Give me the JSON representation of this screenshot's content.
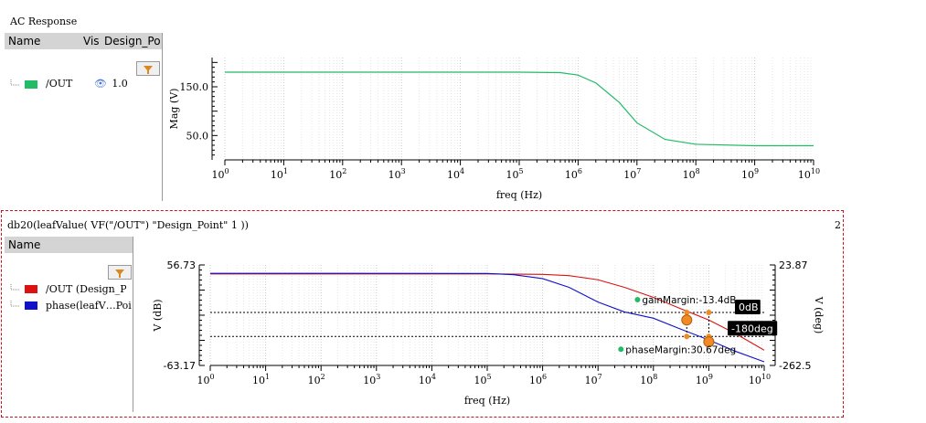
{
  "top_panel": {
    "title": "AC Response",
    "columns": [
      "Name",
      "Vis",
      "Design_Po"
    ],
    "legend": [
      {
        "name": "/OUT",
        "color": "#22bb66",
        "vis_icon": "eye-icon",
        "design_point": "1.0"
      }
    ]
  },
  "bottom_panel": {
    "title": "db20(leafValue( VF(\"/OUT\") \"Design_Point\" 1 ))",
    "panel_number": "2",
    "columns": [
      "Name"
    ],
    "legend": [
      {
        "name": "/OUT (Design_Po",
        "color": "#dd1111"
      },
      {
        "name": "phase(leafV…Poi",
        "color": "#1111cc"
      }
    ]
  },
  "chart_data": [
    {
      "type": "line",
      "xscale": "log",
      "xlim": [
        1,
        10000000000
      ],
      "ylim": [
        0,
        210
      ],
      "xlabel": "freq (Hz)",
      "ylabel": "Mag (V)",
      "xticks": [
        {
          "base": "10",
          "exp": "0"
        },
        {
          "base": "10",
          "exp": "1"
        },
        {
          "base": "10",
          "exp": "2"
        },
        {
          "base": "10",
          "exp": "3"
        },
        {
          "base": "10",
          "exp": "4"
        },
        {
          "base": "10",
          "exp": "5"
        },
        {
          "base": "10",
          "exp": "6"
        },
        {
          "base": "10",
          "exp": "7"
        },
        {
          "base": "10",
          "exp": "8"
        },
        {
          "base": "10",
          "exp": "9"
        },
        {
          "base": "10",
          "exp": "10"
        }
      ],
      "yticks": [
        {
          "value": 150,
          "label": "150.0"
        },
        {
          "value": 50,
          "label": "50.0"
        }
      ],
      "grid": true,
      "series": [
        {
          "color": "#22bb66",
          "x": [
            1,
            100000,
            500000,
            1000000,
            2000000,
            5000000,
            10000000,
            30000000,
            100000000,
            1000000000,
            10000000000
          ],
          "y": [
            180,
            180,
            179,
            174,
            158,
            118,
            76,
            42,
            32,
            29,
            29
          ]
        }
      ]
    },
    {
      "type": "line",
      "xscale": "log",
      "xlim": [
        1,
        10000000000
      ],
      "xlabel": "freq (Hz)",
      "ylabel": "V (dB)",
      "ylabel_right": "V (deg)",
      "y_left": {
        "min": -63.17,
        "max": 56.73,
        "top_label": "56.73",
        "bottom_label": "-63.17"
      },
      "y_right": {
        "min": -262.5,
        "max": 23.87,
        "top_label": "23.87",
        "bottom_label": "-262.5"
      },
      "xticks": [
        {
          "base": "10",
          "exp": "0"
        },
        {
          "base": "10",
          "exp": "1"
        },
        {
          "base": "10",
          "exp": "2"
        },
        {
          "base": "10",
          "exp": "3"
        },
        {
          "base": "10",
          "exp": "4"
        },
        {
          "base": "10",
          "exp": "5"
        },
        {
          "base": "10",
          "exp": "6"
        },
        {
          "base": "10",
          "exp": "7"
        },
        {
          "base": "10",
          "exp": "8"
        },
        {
          "base": "10",
          "exp": "9"
        },
        {
          "base": "10",
          "exp": "10"
        }
      ],
      "grid": true,
      "series": [
        {
          "color": "#dd1111",
          "axis": "left",
          "x": [
            1,
            100000,
            1000000,
            3000000,
            10000000,
            30000000,
            100000000,
            300000000,
            1000000000,
            3000000000,
            10000000000
          ],
          "y": [
            46,
            46,
            45.5,
            44,
            39,
            30,
            18,
            5,
            -9,
            -25,
            -45
          ]
        },
        {
          "color": "#1111cc",
          "axis": "right",
          "x": [
            1,
            100000,
            300000,
            1000000,
            3000000,
            10000000,
            30000000,
            100000000,
            300000000,
            1000000000,
            3000000000,
            10000000000
          ],
          "y": [
            0,
            -0.3,
            -4,
            -15,
            -40,
            -82,
            -110,
            -128,
            -158,
            -190,
            -222,
            -252
          ]
        }
      ],
      "reference_lines": [
        {
          "label": "0dB",
          "axis": "left",
          "y": 0
        },
        {
          "label": "-180deg",
          "axis": "right",
          "y": -180
        }
      ],
      "markers": [
        {
          "label": "gainMargin:-13.4dB",
          "x": 1000000000,
          "y_left": 0,
          "y_right": -180
        },
        {
          "label": "phaseMargin:30.67deg",
          "x": 400000000,
          "y_left": 0,
          "y_right": -180
        }
      ]
    }
  ]
}
